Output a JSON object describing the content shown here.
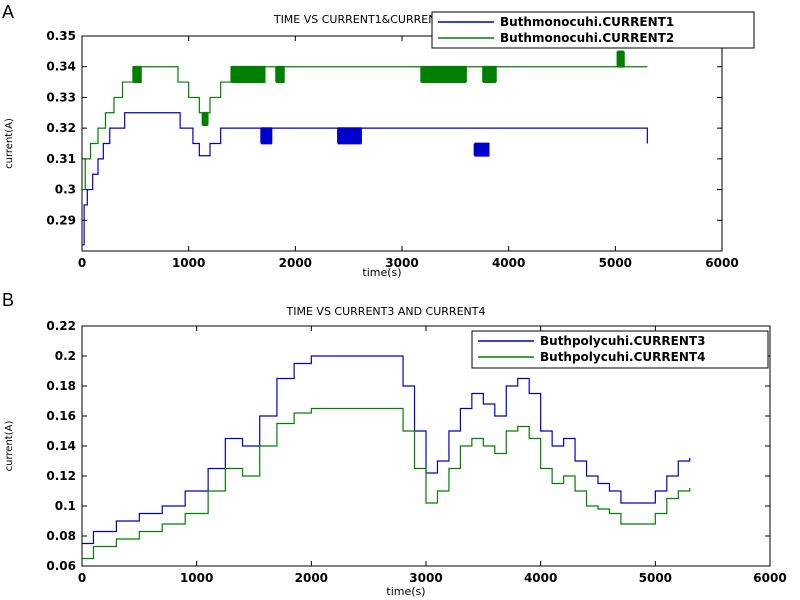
{
  "chart_data": [
    {
      "panel": "A",
      "type": "line",
      "title": "TIME VS CURRENT1&CURRENT2",
      "xlabel": "time(s)",
      "ylabel": "current(A)",
      "xlim": [
        0,
        6000
      ],
      "ylim": [
        0.28,
        0.35
      ],
      "xticks": [
        "0",
        "1000",
        "2000",
        "3000",
        "4000",
        "5000",
        "6000"
      ],
      "yticks": [
        "0.29",
        "0.3",
        "0.31",
        "0.32",
        "0.33",
        "0.34",
        "0.35"
      ],
      "ytick_values": [
        0.29,
        0.3,
        0.31,
        0.32,
        0.33,
        0.34,
        0.35
      ],
      "legend_position": "top-right",
      "series": [
        {
          "name": "Buthmonocuhi.CURRENT1",
          "color": "#0000cc",
          "x": [
            0,
            20,
            50,
            100,
            150,
            200,
            260,
            320,
            400,
            920,
            1040,
            1100,
            1200,
            1300,
            5300
          ],
          "y": [
            0.282,
            0.295,
            0.3,
            0.305,
            0.31,
            0.315,
            0.32,
            0.32,
            0.325,
            0.32,
            0.315,
            0.311,
            0.315,
            0.32,
            0.315
          ],
          "oscillations": [
            {
              "x_start": 1680,
              "x_end": 1780,
              "low": 0.315,
              "high": 0.32
            },
            {
              "x_start": 2400,
              "x_end": 2620,
              "low": 0.315,
              "high": 0.32
            },
            {
              "x_start": 3680,
              "x_end": 3820,
              "low": 0.311,
              "high": 0.315
            }
          ]
        },
        {
          "name": "Buthmonocuhi.CURRENT2",
          "color": "#008000",
          "x": [
            0,
            30,
            80,
            150,
            220,
            300,
            380,
            480,
            900,
            1000,
            1100,
            1200,
            1300,
            1400,
            1900,
            5300
          ],
          "y": [
            0.3,
            0.31,
            0.315,
            0.32,
            0.325,
            0.33,
            0.335,
            0.34,
            0.335,
            0.33,
            0.325,
            0.33,
            0.335,
            0.34,
            0.34,
            0.34
          ],
          "oscillations": [
            {
              "x_start": 480,
              "x_end": 560,
              "low": 0.335,
              "high": 0.34
            },
            {
              "x_start": 1130,
              "x_end": 1180,
              "low": 0.321,
              "high": 0.325
            },
            {
              "x_start": 1400,
              "x_end": 1720,
              "low": 0.335,
              "high": 0.34
            },
            {
              "x_start": 1820,
              "x_end": 1900,
              "low": 0.335,
              "high": 0.34
            },
            {
              "x_start": 3180,
              "x_end": 3600,
              "low": 0.335,
              "high": 0.34
            },
            {
              "x_start": 3760,
              "x_end": 3880,
              "low": 0.335,
              "high": 0.34
            },
            {
              "x_start": 5020,
              "x_end": 5080,
              "low": 0.34,
              "high": 0.345
            }
          ]
        }
      ]
    },
    {
      "panel": "B",
      "type": "line",
      "title": "TIME VS CURRENT3 AND CURRENT4",
      "xlabel": "time(s)",
      "ylabel": "current(A)",
      "xlim": [
        0,
        6000
      ],
      "ylim": [
        0.06,
        0.22
      ],
      "xticks": [
        "0",
        "1000",
        "2000",
        "3000",
        "4000",
        "5000",
        "6000"
      ],
      "yticks": [
        "0.06",
        "0.08",
        "0.1",
        "0.12",
        "0.14",
        "0.16",
        "0.18",
        "0.2",
        "0.22"
      ],
      "ytick_values": [
        0.06,
        0.08,
        0.1,
        0.12,
        0.14,
        0.16,
        0.18,
        0.2,
        0.22
      ],
      "legend_position": "top-right",
      "series": [
        {
          "name": "Buthpolycuhi.CURRENT3",
          "color": "#0000cc",
          "x": [
            0,
            100,
            300,
            500,
            700,
            900,
            1100,
            1250,
            1400,
            1550,
            1700,
            1850,
            2000,
            2700,
            2800,
            2900,
            3000,
            3100,
            3200,
            3300,
            3400,
            3500,
            3600,
            3700,
            3800,
            3900,
            4000,
            4100,
            4200,
            4300,
            4400,
            4500,
            4600,
            4700,
            4800,
            4900,
            5000,
            5100,
            5200,
            5300
          ],
          "y": [
            0.075,
            0.083,
            0.09,
            0.095,
            0.1,
            0.11,
            0.125,
            0.145,
            0.14,
            0.16,
            0.185,
            0.195,
            0.2,
            0.2,
            0.18,
            0.15,
            0.122,
            0.13,
            0.15,
            0.165,
            0.175,
            0.168,
            0.16,
            0.18,
            0.185,
            0.175,
            0.15,
            0.14,
            0.145,
            0.13,
            0.12,
            0.115,
            0.11,
            0.102,
            0.102,
            0.102,
            0.11,
            0.12,
            0.13,
            0.132
          ]
        },
        {
          "name": "Buthpolycuhi.CURRENT4",
          "color": "#008000",
          "x": [
            0,
            100,
            300,
            500,
            700,
            900,
            1100,
            1250,
            1400,
            1550,
            1700,
            1850,
            2000,
            2700,
            2800,
            2900,
            3000,
            3100,
            3200,
            3300,
            3400,
            3500,
            3600,
            3700,
            3800,
            3900,
            4000,
            4100,
            4200,
            4300,
            4400,
            4500,
            4600,
            4700,
            4800,
            4900,
            5000,
            5100,
            5200,
            5300
          ],
          "y": [
            0.065,
            0.073,
            0.078,
            0.083,
            0.088,
            0.095,
            0.11,
            0.125,
            0.12,
            0.14,
            0.155,
            0.162,
            0.165,
            0.165,
            0.15,
            0.125,
            0.102,
            0.11,
            0.125,
            0.14,
            0.145,
            0.14,
            0.135,
            0.15,
            0.153,
            0.145,
            0.125,
            0.115,
            0.12,
            0.11,
            0.1,
            0.098,
            0.095,
            0.088,
            0.088,
            0.088,
            0.095,
            0.105,
            0.11,
            0.112
          ]
        }
      ]
    }
  ],
  "panels": {
    "a_label": "A",
    "b_label": "B"
  }
}
